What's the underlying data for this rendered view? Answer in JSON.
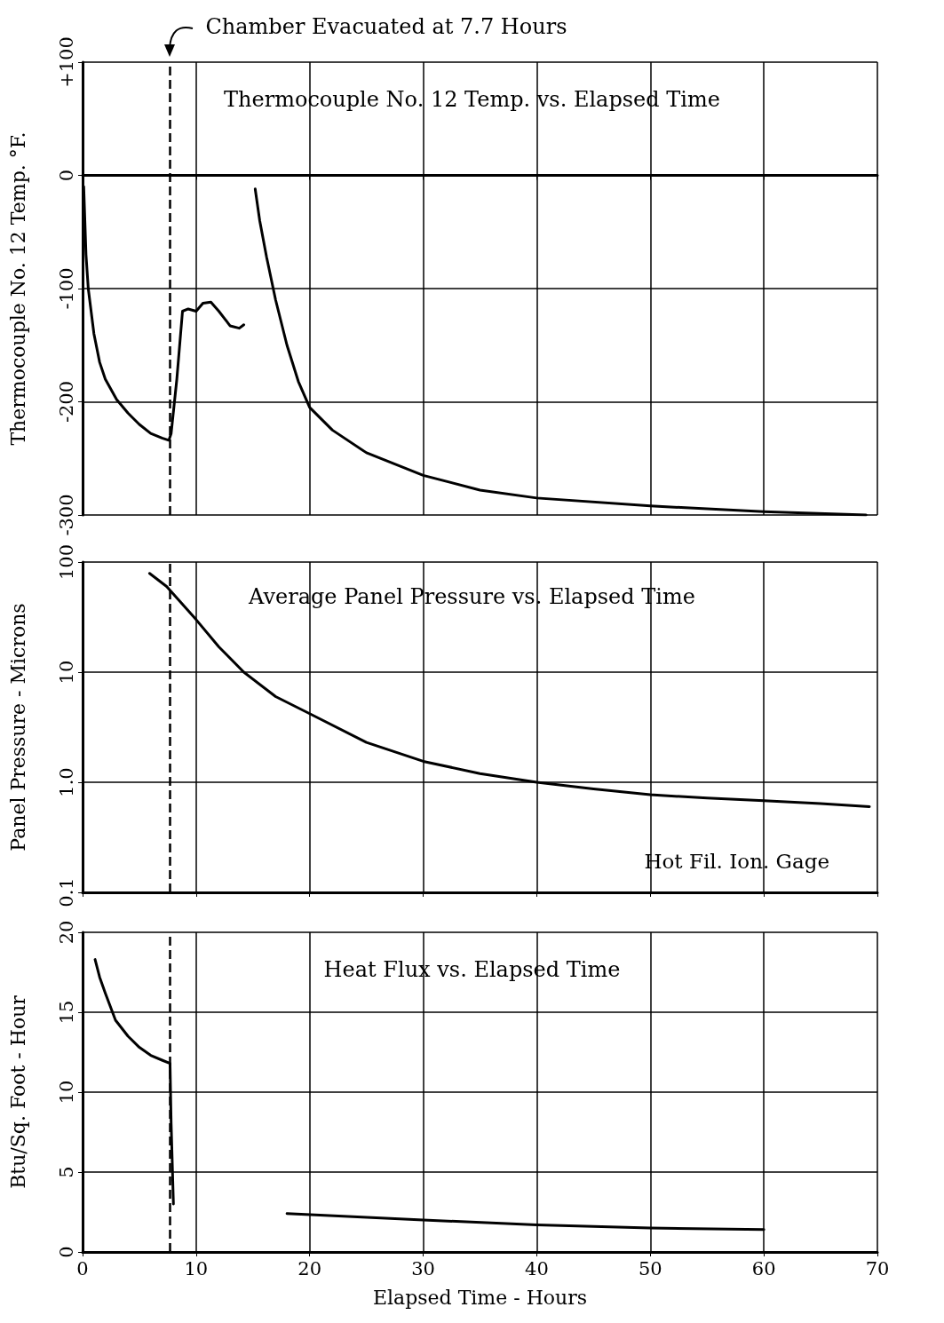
{
  "chart_data": [
    {
      "type": "line",
      "title": "Thermocouple No. 12 Temp. vs. Elapsed Time",
      "ylabel": "Thermocouple No. 12 Temp. °F.",
      "xlim": [
        0,
        70
      ],
      "xticks": [
        0,
        10,
        20,
        30,
        40,
        50,
        60,
        70
      ],
      "ylim": [
        -300,
        100
      ],
      "yticks": [
        {
          "value": 100,
          "label": "+100"
        },
        0,
        -100,
        -200,
        -300
      ],
      "tick_labels": "y",
      "grid": true,
      "marker": "none",
      "line_style": "solid",
      "series": [
        {
          "color": "#000000",
          "x": [
            0.1,
            0.3,
            0.5,
            1,
            1.5,
            2,
            3,
            4,
            5,
            6,
            7,
            7.6,
            7.8,
            8.3,
            8.8,
            9.3,
            10,
            10.6,
            11.3,
            12,
            13,
            13.8,
            14.2
          ],
          "values": [
            -10,
            -70,
            -100,
            -140,
            -165,
            -180,
            -198,
            -210,
            -220,
            -228,
            -232,
            -234,
            -228,
            -180,
            -120,
            -118,
            -120,
            -113,
            -112,
            -120,
            -133,
            -135,
            -132
          ]
        },
        {
          "color": "#000000",
          "x": [
            15.2,
            15.6,
            16.2,
            17,
            18,
            19,
            20,
            22,
            25,
            30,
            35,
            40,
            50,
            60,
            69
          ],
          "values": [
            -12,
            -40,
            -72,
            -110,
            -150,
            -182,
            -205,
            -225,
            -245,
            -265,
            -278,
            -285,
            -292,
            -297,
            -300
          ]
        }
      ],
      "ref_lines": [
        {
          "axis": "x",
          "value": 7.7,
          "label": "Chamber Evacuated at 7.7 Hours",
          "line_style": "dashed",
          "color": "#000000"
        }
      ]
    },
    {
      "type": "line",
      "title": "Average Panel Pressure vs. Elapsed Time",
      "ylabel": "Panel Pressure - Microns",
      "log": "y",
      "xlim": [
        0,
        70
      ],
      "xticks": [
        0,
        10,
        20,
        30,
        40,
        50,
        60,
        70
      ],
      "ylim": [
        0.1,
        100
      ],
      "yticks": [
        0.1,
        {
          "value": 1,
          "label": "1.0"
        },
        10,
        100
      ],
      "tick_labels": "y",
      "grid": true,
      "marker": "none",
      "line_style": "solid",
      "series": [
        {
          "color": "#000000",
          "x": [
            5.9,
            7.4,
            10,
            12,
            14.2,
            17,
            20,
            25,
            30,
            35,
            40,
            45,
            50,
            55,
            60,
            65,
            69.3
          ],
          "values": [
            79,
            60,
            30,
            17,
            10,
            6,
            4.2,
            2.3,
            1.55,
            1.2,
            1.0,
            0.87,
            0.77,
            0.72,
            0.68,
            0.64,
            0.6
          ]
        }
      ],
      "ref_lines": [
        {
          "axis": "x",
          "value": 7.7,
          "line_style": "dashed",
          "color": "#000000"
        }
      ],
      "annotations": [
        "Hot Fil. Ion. Gage"
      ]
    },
    {
      "type": "line",
      "title": "Heat Flux vs. Elapsed Time",
      "ylabel": "Btu/Sq. Foot - Hour",
      "xlabel": "Elapsed Time - Hours",
      "xlim": [
        0,
        70
      ],
      "xticks": [
        0,
        10,
        20,
        30,
        40,
        50,
        60,
        70
      ],
      "ylim": [
        0,
        20
      ],
      "yticks": [
        0,
        5,
        10,
        15,
        20
      ],
      "grid": true,
      "marker": "none",
      "line_style": "solid",
      "series": [
        {
          "color": "#000000",
          "x": [
            1.1,
            1.5,
            2,
            2.9,
            4,
            5,
            6,
            7,
            7.7,
            7.8,
            8
          ],
          "values": [
            18.3,
            17.2,
            16.2,
            14.5,
            13.5,
            12.8,
            12.3,
            12,
            11.8,
            8,
            3
          ]
        },
        {
          "color": "#000000",
          "x": [
            18,
            30,
            40,
            50,
            60
          ],
          "values": [
            2.4,
            2.0,
            1.7,
            1.5,
            1.4
          ]
        }
      ],
      "ref_lines": [
        {
          "axis": "x",
          "value": 7.7,
          "line_style": "dashed",
          "color": "#000000"
        }
      ]
    }
  ]
}
